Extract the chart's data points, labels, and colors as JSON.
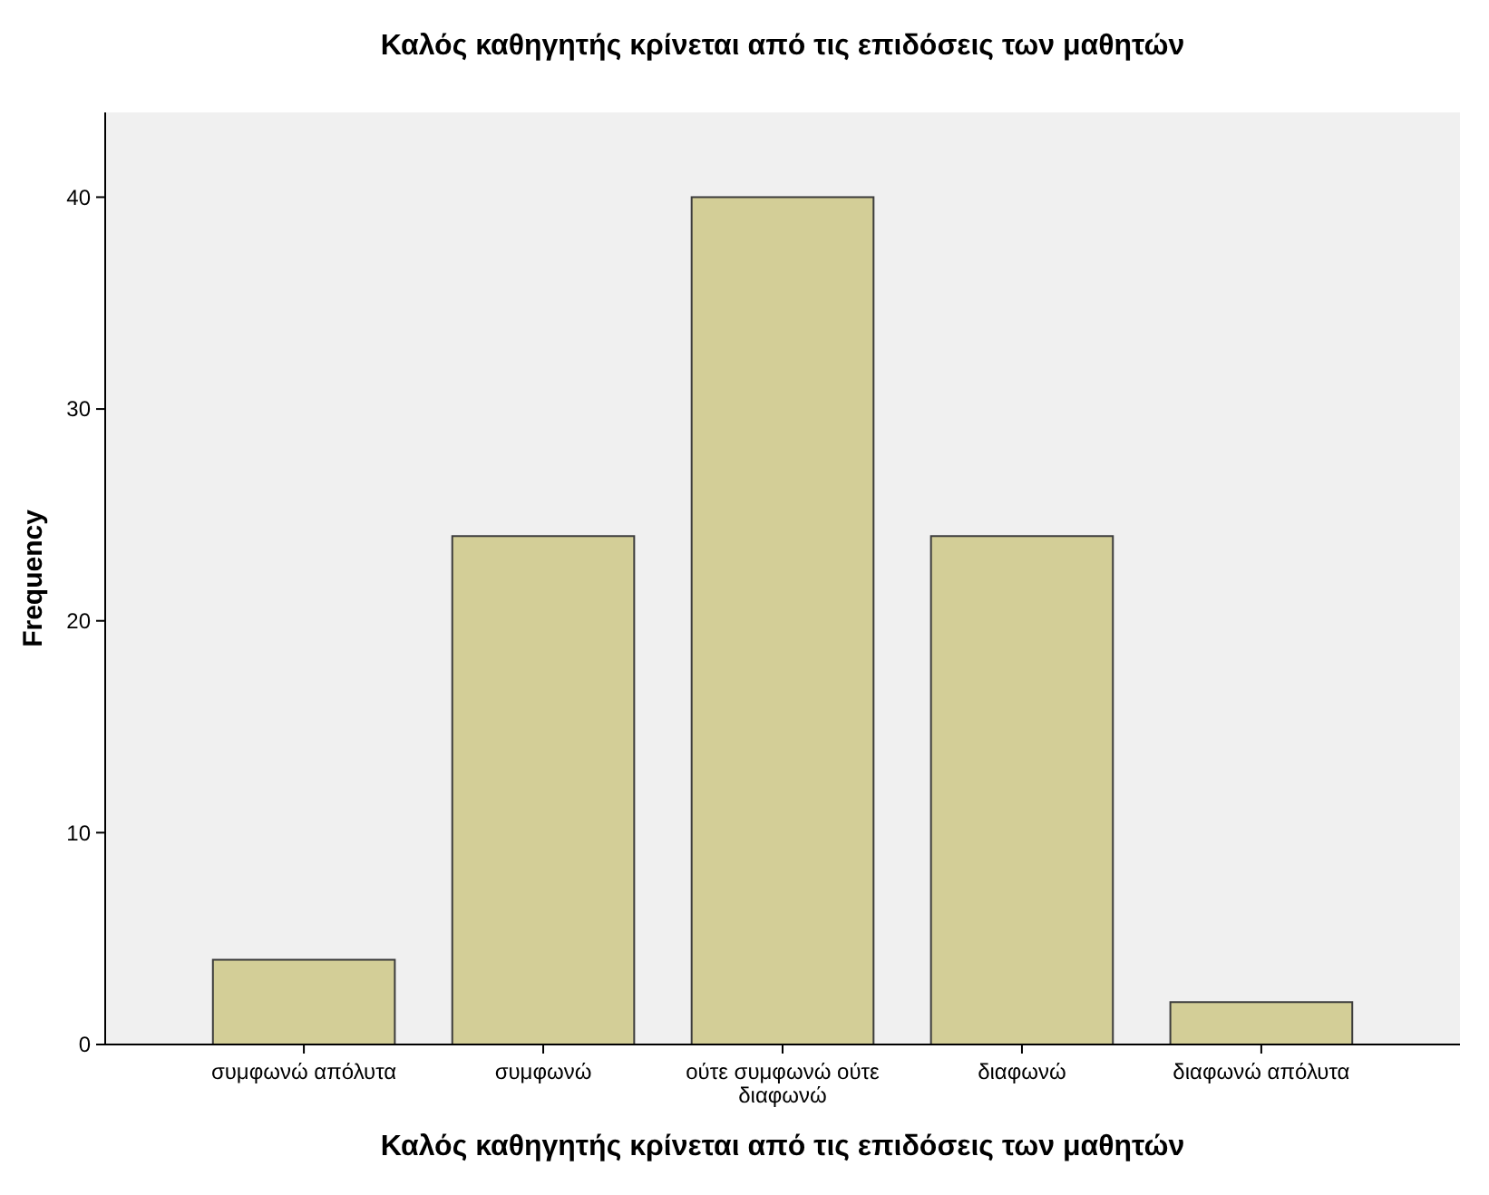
{
  "chart_data": {
    "type": "bar",
    "title": "Καλός καθηγητής κρίνεται από τις επιδόσεις των μαθητών",
    "xlabel": "Καλός καθηγητής κρίνεται από τις επιδόσεις των μαθητών",
    "ylabel": "Frequency",
    "categories": [
      "συμφωνώ απόλυτα",
      "συμφωνώ",
      "ούτε συμφωνώ ούτε διαφωνώ",
      "διαφωνώ",
      "διαφωνώ απόλυτα"
    ],
    "values": [
      4,
      24,
      40,
      24,
      2
    ],
    "color": "#d3ce97",
    "ylim": [
      0,
      44
    ],
    "yticks": [
      0,
      10,
      20,
      30,
      40
    ]
  }
}
